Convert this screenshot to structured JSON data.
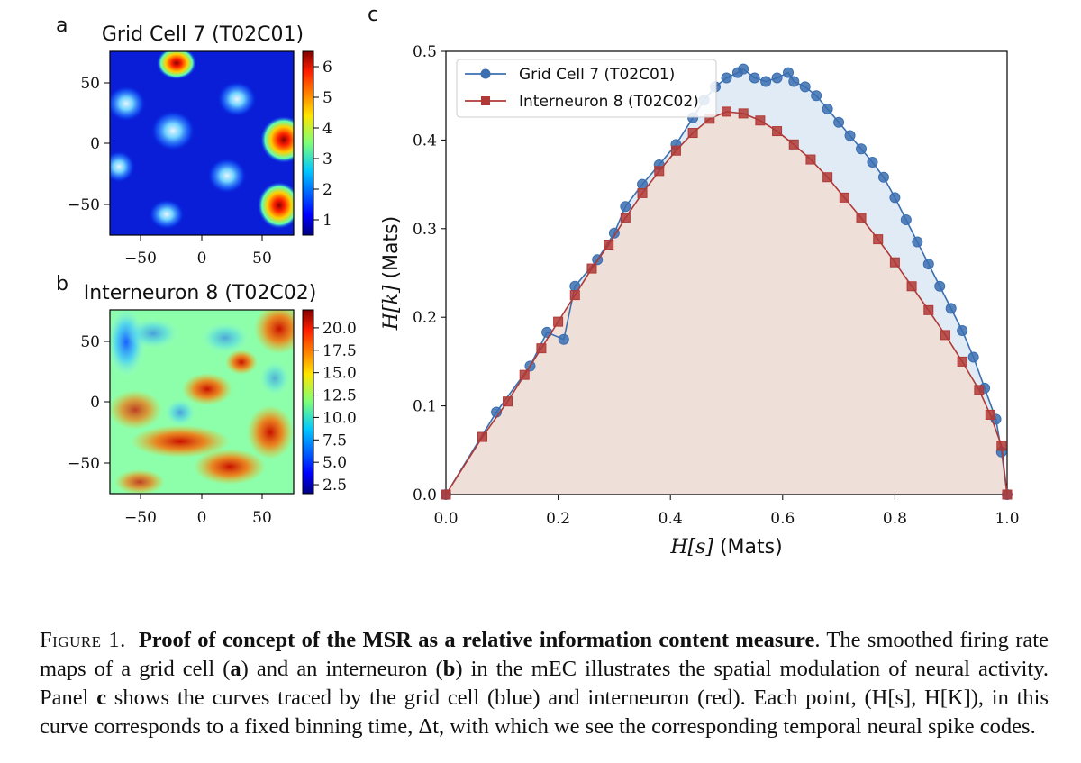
{
  "panel_a": {
    "letter": "a",
    "title": "Grid Cell 7 (T02C01)",
    "ticks": [
      "−50",
      "0",
      "50"
    ],
    "colorbar_ticks": [
      "6",
      "5",
      "4",
      "3",
      "2",
      "1"
    ],
    "colorbar_min": 0.5,
    "colorbar_max": 6.5
  },
  "panel_b": {
    "letter": "b",
    "title": "Interneuron 8 (T02C02)",
    "ticks": [
      "−50",
      "0",
      "50"
    ],
    "colorbar_ticks": [
      "20.0",
      "17.5",
      "15.0",
      "12.5",
      "10.0",
      "7.5",
      "5.0",
      "2.5"
    ],
    "colorbar_min": 1.5,
    "colorbar_max": 22.0
  },
  "panel_c": {
    "letter": "c"
  },
  "chart_data": {
    "type": "line",
    "xlabel_var": "H[s]",
    "xlabel_unit": " (Mats)",
    "ylabel_var": "H[k]",
    "ylabel_unit": " (Mats)",
    "xlim": [
      0.0,
      1.0
    ],
    "ylim": [
      0.0,
      0.5
    ],
    "xticks": [
      "0.0",
      "0.2",
      "0.4",
      "0.6",
      "0.8",
      "1.0"
    ],
    "yticks": [
      "0.0",
      "0.1",
      "0.2",
      "0.3",
      "0.4",
      "0.5"
    ],
    "legend_position": "top-left",
    "grid": false,
    "series": [
      {
        "name": "Grid Cell 7 (T02C01)",
        "color": "#3b6fb0",
        "fill": "#dbe7f3",
        "marker": "circle",
        "x": [
          0.0,
          0.09,
          0.15,
          0.18,
          0.21,
          0.23,
          0.27,
          0.3,
          0.32,
          0.35,
          0.38,
          0.41,
          0.44,
          0.46,
          0.48,
          0.5,
          0.52,
          0.53,
          0.55,
          0.57,
          0.59,
          0.61,
          0.62,
          0.64,
          0.66,
          0.68,
          0.7,
          0.72,
          0.74,
          0.76,
          0.78,
          0.8,
          0.82,
          0.84,
          0.86,
          0.88,
          0.9,
          0.92,
          0.94,
          0.96,
          0.98,
          0.99,
          1.0
        ],
        "y": [
          0.0,
          0.093,
          0.145,
          0.183,
          0.175,
          0.235,
          0.265,
          0.295,
          0.325,
          0.35,
          0.372,
          0.395,
          0.425,
          0.445,
          0.46,
          0.47,
          0.476,
          0.48,
          0.47,
          0.466,
          0.47,
          0.476,
          0.466,
          0.46,
          0.45,
          0.435,
          0.42,
          0.405,
          0.39,
          0.375,
          0.358,
          0.335,
          0.31,
          0.285,
          0.26,
          0.235,
          0.21,
          0.185,
          0.155,
          0.12,
          0.085,
          0.048,
          0.0
        ]
      },
      {
        "name": "Interneuron 8 (T02C02)",
        "color": "#b03a36",
        "fill": "#f0ddd3",
        "marker": "square",
        "x": [
          0.0,
          0.065,
          0.11,
          0.14,
          0.17,
          0.2,
          0.23,
          0.26,
          0.29,
          0.32,
          0.35,
          0.38,
          0.41,
          0.44,
          0.47,
          0.5,
          0.53,
          0.56,
          0.59,
          0.62,
          0.65,
          0.68,
          0.71,
          0.74,
          0.77,
          0.8,
          0.83,
          0.86,
          0.89,
          0.92,
          0.95,
          0.97,
          0.99,
          1.0
        ],
        "y": [
          0.0,
          0.065,
          0.105,
          0.135,
          0.165,
          0.195,
          0.225,
          0.255,
          0.282,
          0.312,
          0.34,
          0.365,
          0.388,
          0.408,
          0.424,
          0.432,
          0.43,
          0.422,
          0.41,
          0.395,
          0.378,
          0.358,
          0.335,
          0.312,
          0.288,
          0.262,
          0.235,
          0.208,
          0.18,
          0.15,
          0.118,
          0.09,
          0.055,
          0.0
        ]
      }
    ]
  },
  "caption": {
    "label": "Figure 1.",
    "title": "Proof of concept of the MSR as a relative information content measure",
    "t1": ". The smoothed firing rate maps of a grid cell (",
    "a": "a",
    "t2": ") and an interneuron (",
    "b": "b",
    "t3": ") in the mEC illustrates the spatial modulation of neural activity. Panel ",
    "c": "c",
    "t4": " shows the curves traced by the grid cell (blue) and interneuron (red). Each point, (H[s], H[K]), in this curve corresponds to a fixed binning time, Δt, with which we see the corresponding temporal neural spike codes."
  }
}
